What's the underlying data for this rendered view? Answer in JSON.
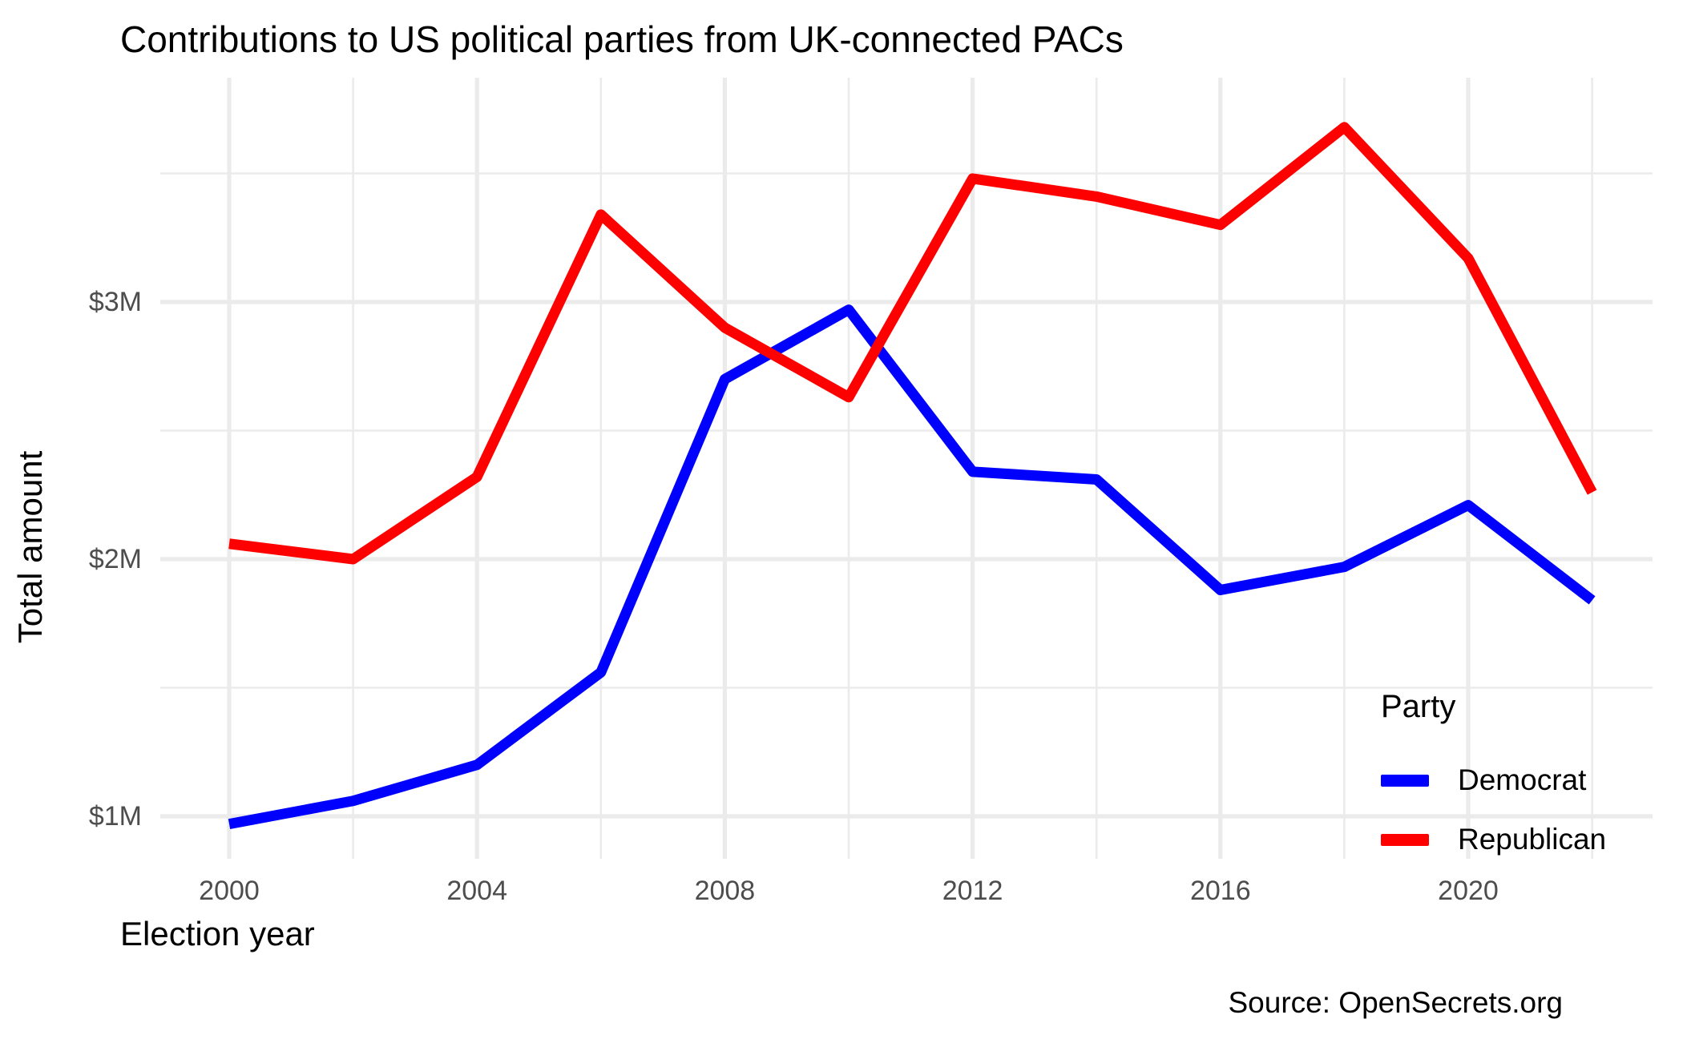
{
  "title": "Contributions to US political parties from UK-connected PACs",
  "source_note": "Source: OpenSecrets.org",
  "chart_data": {
    "type": "line",
    "title": "Contributions to US political parties from UK-connected PACs",
    "xlabel": "Election year",
    "ylabel": "Total amount",
    "legend_title": "Party",
    "legend_position": "inside bottom-right",
    "grid": "major and minor light-gray gridlines on white background",
    "x": [
      2000,
      2002,
      2004,
      2006,
      2008,
      2010,
      2012,
      2014,
      2016,
      2018,
      2020,
      2022
    ],
    "series": [
      {
        "name": "Democrat",
        "color": "#0000FF",
        "values_millions_usd": [
          0.97,
          1.06,
          1.2,
          1.56,
          2.7,
          2.97,
          2.34,
          2.31,
          1.88,
          1.97,
          2.21,
          1.84
        ]
      },
      {
        "name": "Republican",
        "color": "#FF0000",
        "values_millions_usd": [
          2.06,
          2.0,
          2.32,
          3.34,
          2.9,
          2.63,
          3.48,
          3.41,
          3.3,
          3.68,
          3.17,
          2.26
        ]
      }
    ],
    "x_ticks": {
      "values": [
        2000,
        2004,
        2008,
        2012,
        2016,
        2020
      ],
      "labels": [
        "2000",
        "2004",
        "2008",
        "2012",
        "2016",
        "2020"
      ]
    },
    "x_minor": [
      2002,
      2006,
      2010,
      2014,
      2018,
      2022
    ],
    "y_ticks": {
      "values": [
        1,
        2,
        3
      ],
      "labels": [
        "$1M",
        "$2M",
        "$3M"
      ]
    },
    "y_minor": [
      1.5,
      2.5,
      3.5
    ],
    "xlim": [
      1998.9,
      2023.0
    ],
    "ylim": [
      0.84,
      3.9
    ],
    "colors": {
      "democrat": "#0000FF",
      "republican": "#FF0000",
      "gridline": "#EBEBEB",
      "tick_label": "#4D4D4D",
      "text": "#000000"
    }
  }
}
